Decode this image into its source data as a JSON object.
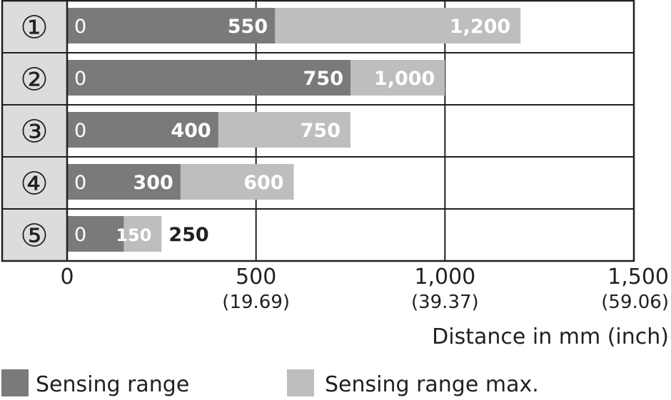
{
  "chart_data": {
    "type": "bar",
    "orientation": "horizontal",
    "stacked": "overlay",
    "categories": [
      "①",
      "②",
      "③",
      "④",
      "⑤"
    ],
    "series": [
      {
        "name": "Sensing range",
        "values": [
          550,
          750,
          400,
          300,
          150
        ],
        "color": "#7a7a7c"
      },
      {
        "name": "Sensing range max.",
        "values": [
          1200,
          1000,
          750,
          600,
          250
        ],
        "color": "#bdbec0"
      }
    ],
    "start_labels": [
      "0",
      "0",
      "0",
      "0",
      "0"
    ],
    "range_labels": [
      "550",
      "750",
      "400",
      "300",
      "150"
    ],
    "max_labels": [
      "1,200",
      "1,000",
      "750",
      "600",
      "250"
    ],
    "xlim": [
      0,
      1500
    ],
    "x_ticks": [
      {
        "mm": "0",
        "inch": ""
      },
      {
        "mm": "500",
        "inch": "(19.69)"
      },
      {
        "mm": "1,000",
        "inch": "(39.37)"
      },
      {
        "mm": "1,500",
        "inch": "(59.06)"
      }
    ],
    "x_tick_values": [
      0,
      500,
      1000,
      1500
    ],
    "xlabel": "Distance in mm (inch)",
    "grid": true,
    "legend_position": "bottom",
    "legend": [
      "Sensing range",
      "Sensing range max."
    ]
  }
}
